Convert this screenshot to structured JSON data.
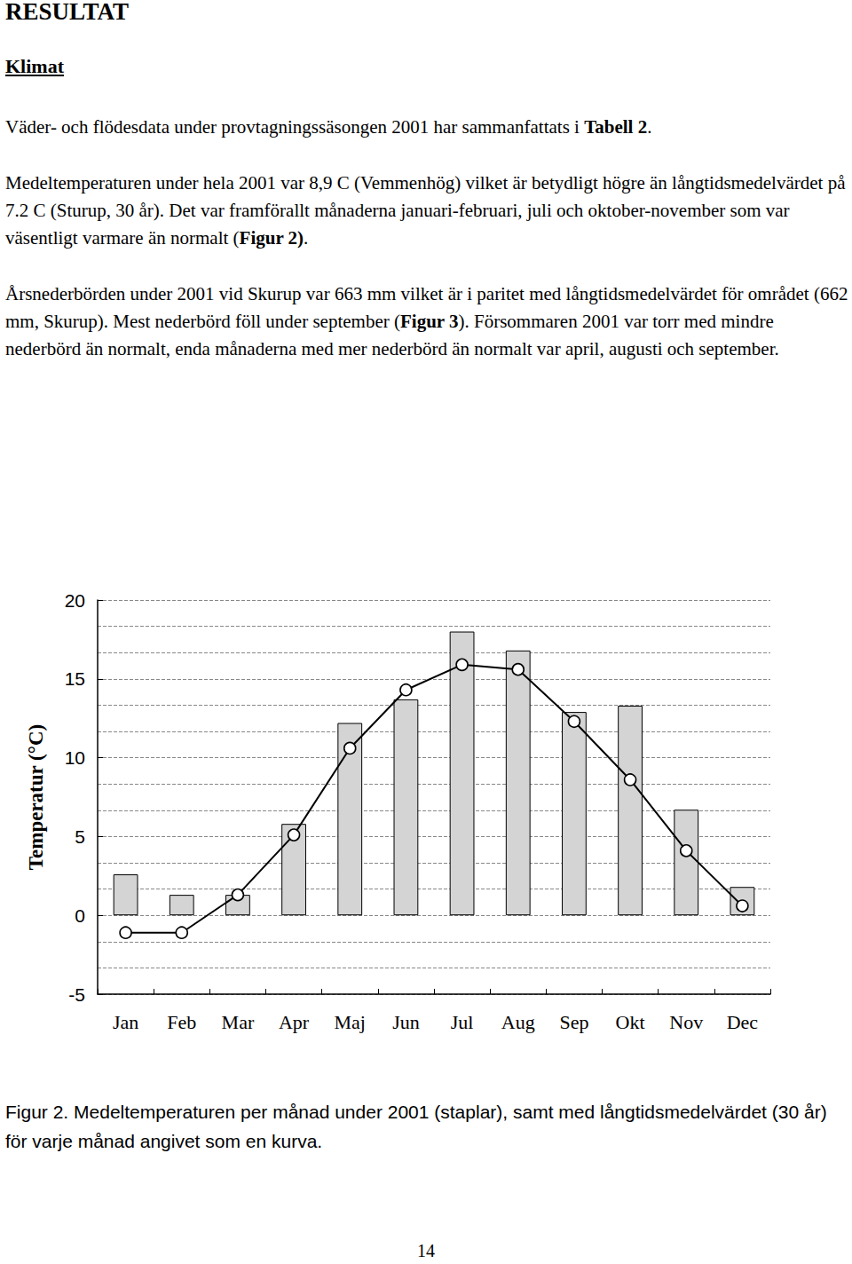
{
  "document": {
    "heading": "RESULTAT",
    "subheading": "Klimat",
    "paragraphs": [
      [
        {
          "text": "Väder- och flödesdata under provtagningssäsongen 2001 har sammanfattats i "
        },
        {
          "text": "Tabell 2",
          "bold": true
        },
        {
          "text": "."
        }
      ],
      [
        {
          "text": "Medeltemperaturen under hela 2001 var 8,9 C (Vemmenhög) vilket är betydligt högre än långtidsmedelvärdet på 7.2 C (Sturup, 30 år). Det var framförallt månaderna januari-februari, juli och oktober-november som var väsentligt varmare än normalt ("
        },
        {
          "text": "Figur 2)",
          "bold": true
        },
        {
          "text": "."
        }
      ],
      [
        {
          "text": "Årsnederbörden under 2001 vid Skurup var 663 mm vilket är i paritet med långtidsmedelvärdet för området (662 mm, Skurup). Mest nederbörd föll under september ("
        },
        {
          "text": "Figur 3",
          "bold": true
        },
        {
          "text": "). Försommaren 2001 var torr med mindre nederbörd än normalt, enda månaderna med mer nederbörd än normalt var april, augusti och september."
        }
      ]
    ],
    "caption": "Figur 2. Medeltemperaturen per månad under 2001 (staplar), samt med långtidsmedelvärdet (30 år) för varje månad angivet som en kurva.",
    "page_number": "14"
  },
  "chart_data": {
    "type": "bar",
    "y_label": "Temperatur (°C)",
    "categories": [
      "Jan",
      "Feb",
      "Mar",
      "Apr",
      "Maj",
      "Jun",
      "Jul",
      "Aug",
      "Sep",
      "Okt",
      "Nov",
      "Dec"
    ],
    "series": [
      {
        "type": "bar",
        "color": "#d4d4d4",
        "values": [
          2.6,
          1.3,
          1.3,
          5.8,
          12.2,
          13.7,
          18.0,
          16.8,
          12.9,
          13.3,
          6.7,
          1.8
        ]
      },
      {
        "type": "line",
        "color": "#000000",
        "marker": "circle",
        "values": [
          -1.1,
          -1.1,
          1.3,
          5.1,
          10.6,
          14.3,
          15.9,
          15.6,
          12.3,
          8.6,
          4.1,
          0.6
        ]
      }
    ],
    "ylim": [
      -5,
      20
    ],
    "yticks": [
      -5,
      0,
      5,
      10,
      15,
      20
    ],
    "grid": true
  }
}
